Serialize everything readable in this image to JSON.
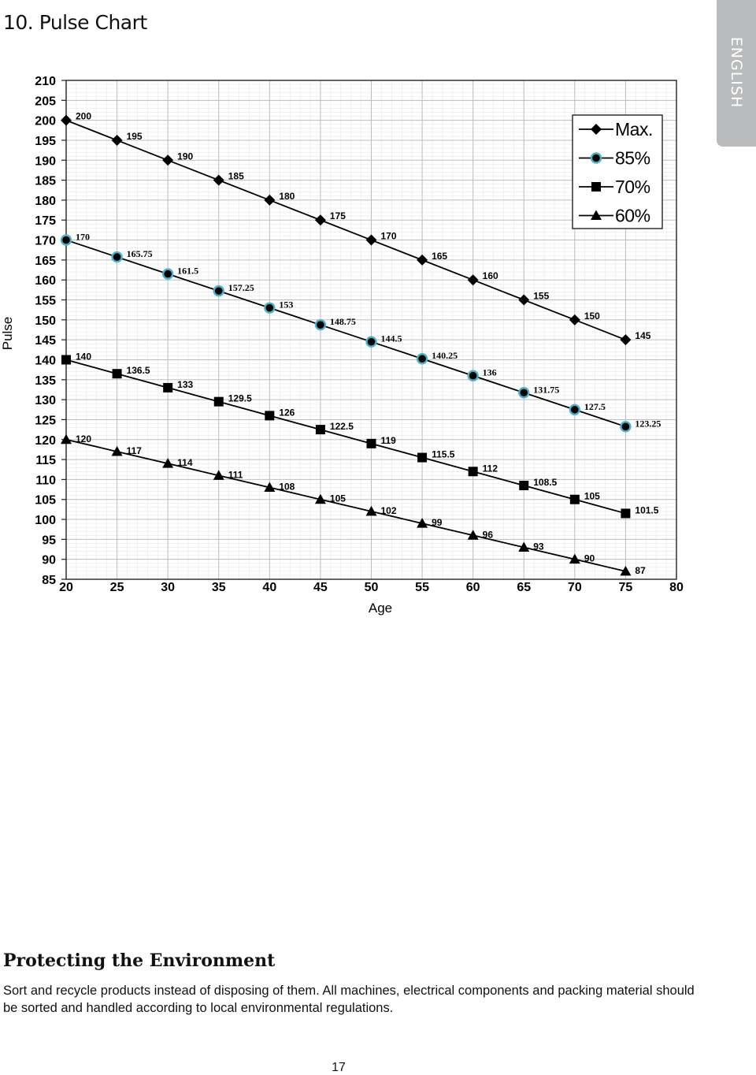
{
  "page": {
    "section_title": "10. Pulse Chart",
    "language_tab": "ENGLISH",
    "env_title": "Protecting the Environment",
    "env_text": "Sort and recycle products instead of disposing of them. All machines, electrical components and packing material should be sorted and handled according to local environmental regulations.",
    "page_number": "17"
  },
  "chart_data": {
    "type": "line",
    "xlabel": "Age",
    "ylabel": "Pulse",
    "xlim": [
      20,
      80
    ],
    "ylim": [
      85,
      210
    ],
    "x_ticks": [
      20,
      25,
      30,
      35,
      40,
      45,
      50,
      55,
      60,
      65,
      70,
      75,
      80
    ],
    "y_ticks": [
      85,
      90,
      95,
      100,
      105,
      110,
      115,
      120,
      125,
      130,
      135,
      140,
      145,
      150,
      155,
      160,
      165,
      170,
      175,
      180,
      185,
      190,
      195,
      200,
      205,
      210
    ],
    "grid": true,
    "legend_position": "top-right",
    "x": [
      20,
      25,
      30,
      35,
      40,
      45,
      50,
      55,
      60,
      65,
      70,
      75
    ],
    "series": [
      {
        "name": "Max.",
        "marker": "diamond",
        "color": "#000000",
        "values": [
          200,
          195,
          190,
          185,
          180,
          175,
          170,
          165,
          160,
          155,
          150,
          145
        ],
        "labels": [
          "200",
          "195",
          "190",
          "185",
          "180",
          "175",
          "170",
          "165",
          "160",
          "155",
          "150",
          "145"
        ]
      },
      {
        "name": "85%",
        "marker": "circle",
        "color": "#000000",
        "ring_color": "#4ab3c9",
        "values": [
          170,
          165.75,
          161.5,
          157.25,
          153,
          148.75,
          144.5,
          140.25,
          136,
          131.75,
          127.5,
          123.25
        ],
        "labels": [
          "170",
          "165.75",
          "161.5",
          "157.25",
          "153",
          "148.75",
          "144.5",
          "140.25",
          "136",
          "131.75",
          "127.5",
          "123.25"
        ]
      },
      {
        "name": "70%",
        "marker": "square",
        "color": "#000000",
        "values": [
          140,
          136.5,
          133,
          129.5,
          126,
          122.5,
          119,
          115.5,
          112,
          108.5,
          105,
          101.5
        ],
        "labels": [
          "140",
          "136.5",
          "133",
          "129.5",
          "126",
          "122.5",
          "119",
          "115.5",
          "112",
          "108.5",
          "105",
          "101.5"
        ]
      },
      {
        "name": "60%",
        "marker": "triangle",
        "color": "#000000",
        "values": [
          120,
          117,
          114,
          111,
          108,
          105,
          102,
          99,
          96,
          93,
          90,
          87
        ],
        "labels": [
          "120",
          "117",
          "114",
          "111",
          "108",
          "105",
          "102",
          "99",
          "96",
          "93",
          "90",
          "87"
        ]
      }
    ]
  }
}
